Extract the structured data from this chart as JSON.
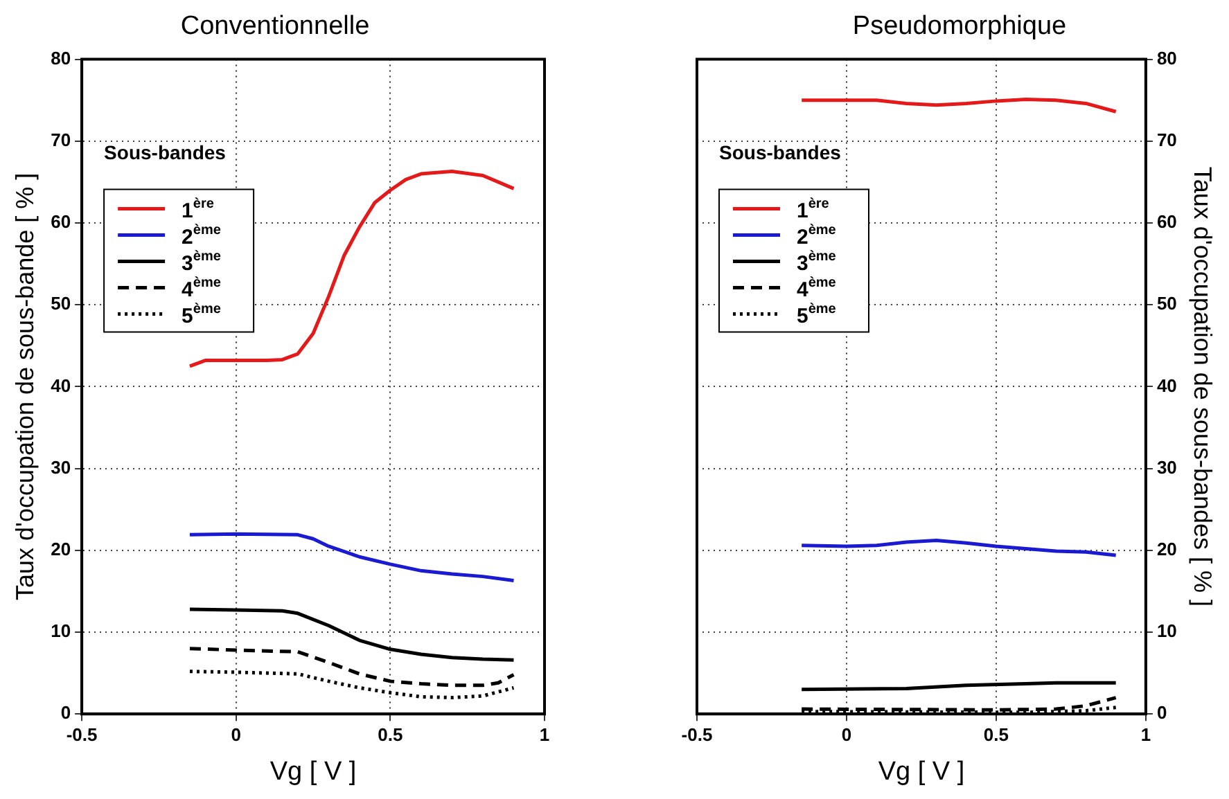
{
  "chart_data": [
    {
      "type": "line",
      "title": "Conventionnelle",
      "xlabel": "Vg [ V ]",
      "ylabel": "Taux d'occupation de sous-bande [ % ]",
      "legend_title": "Sous-bandes",
      "legend": "top left",
      "grid": true,
      "xlim": [
        -0.5,
        1
      ],
      "xticks": [
        -0.5,
        0,
        0.5,
        1
      ],
      "ylim": [
        0,
        80
      ],
      "yticks": [
        0,
        10,
        20,
        30,
        40,
        50,
        60,
        70,
        80
      ],
      "series": [
        {
          "name": "1$^{ère}$",
          "color": "#e41a1a",
          "line_style": "solid",
          "x": [
            -0.15,
            -0.1,
            0,
            0.1,
            0.15,
            0.2,
            0.25,
            0.3,
            0.35,
            0.4,
            0.45,
            0.5,
            0.55,
            0.6,
            0.7,
            0.8,
            0.9
          ],
          "values": [
            42.5,
            43.2,
            43.2,
            43.2,
            43.3,
            44,
            46.5,
            51,
            56,
            59.5,
            62.5,
            64,
            65.3,
            66,
            66.3,
            65.8,
            64.2
          ]
        },
        {
          "name": "2$^{ème}$",
          "color": "#1a1ad0",
          "line_style": "solid",
          "x": [
            -0.15,
            0,
            0.2,
            0.25,
            0.3,
            0.4,
            0.5,
            0.6,
            0.7,
            0.8,
            0.9
          ],
          "values": [
            21.9,
            22,
            21.9,
            21.4,
            20.5,
            19.2,
            18.3,
            17.5,
            17.1,
            16.8,
            16.3
          ]
        },
        {
          "name": "3$^{ème}$",
          "color": "#000000",
          "line_style": "solid",
          "x": [
            -0.15,
            0,
            0.15,
            0.2,
            0.3,
            0.4,
            0.5,
            0.6,
            0.7,
            0.8,
            0.9
          ],
          "values": [
            12.8,
            12.7,
            12.6,
            12.3,
            10.8,
            9,
            7.9,
            7.3,
            6.9,
            6.7,
            6.6
          ]
        },
        {
          "name": "4$^{ème}$",
          "color": "#000000",
          "line_style": "dashed",
          "x": [
            -0.15,
            0,
            0.2,
            0.3,
            0.4,
            0.5,
            0.6,
            0.7,
            0.8,
            0.85,
            0.9
          ],
          "values": [
            8,
            7.8,
            7.6,
            6.3,
            4.9,
            4,
            3.7,
            3.5,
            3.5,
            3.8,
            4.8
          ]
        },
        {
          "name": "5$^{ème}$",
          "color": "#000000",
          "line_style": "dotted",
          "x": [
            -0.15,
            0,
            0.2,
            0.3,
            0.4,
            0.5,
            0.6,
            0.7,
            0.8,
            0.9
          ],
          "values": [
            5.2,
            5.1,
            4.9,
            4,
            3.2,
            2.6,
            2.1,
            2,
            2.2,
            3.2
          ]
        }
      ]
    },
    {
      "type": "line",
      "title": "Pseudomorphique",
      "xlabel": "Vg [ V ]",
      "y2label": "Taux d'occupation de sous-bandes [ % ]",
      "legend_title": "Sous-bandes",
      "legend": "top left",
      "grid": true,
      "xlim": [
        -0.5,
        1
      ],
      "xticks": [
        -0.5,
        0,
        0.5,
        1
      ],
      "y2lim": [
        0,
        80
      ],
      "y2ticks": [
        0,
        10,
        20,
        30,
        40,
        50,
        60,
        70,
        80
      ],
      "series": [
        {
          "name": "1$^{ère}$",
          "color": "#e41a1a",
          "line_style": "solid",
          "axis": "y2",
          "x": [
            -0.15,
            0,
            0.1,
            0.2,
            0.3,
            0.4,
            0.5,
            0.6,
            0.7,
            0.8,
            0.9
          ],
          "values": [
            75,
            75,
            75,
            74.6,
            74.4,
            74.6,
            74.9,
            75.1,
            75,
            74.6,
            73.6
          ]
        },
        {
          "name": "2$^{ème}$",
          "color": "#1a1ad0",
          "line_style": "solid",
          "axis": "y2",
          "x": [
            -0.15,
            0,
            0.1,
            0.2,
            0.3,
            0.4,
            0.5,
            0.6,
            0.7,
            0.8,
            0.9
          ],
          "values": [
            20.6,
            20.5,
            20.6,
            21,
            21.2,
            20.9,
            20.5,
            20.2,
            19.9,
            19.8,
            19.4
          ]
        },
        {
          "name": "3$^{ème}$",
          "color": "#000000",
          "line_style": "solid",
          "axis": "y2",
          "x": [
            -0.15,
            0.2,
            0.4,
            0.6,
            0.7,
            0.9
          ],
          "values": [
            3,
            3.1,
            3.5,
            3.7,
            3.8,
            3.8
          ]
        },
        {
          "name": "4$^{ème}$",
          "color": "#000000",
          "line_style": "dashed",
          "axis": "y2",
          "x": [
            -0.15,
            0.5,
            0.7,
            0.8,
            0.9
          ],
          "values": [
            0.6,
            0.5,
            0.6,
            1,
            2
          ]
        },
        {
          "name": "5$^{ème}$",
          "color": "#000000",
          "line_style": "dotted",
          "axis": "y2",
          "x": [
            -0.15,
            0.6,
            0.8,
            0.9
          ],
          "values": [
            0.3,
            0.2,
            0.4,
            0.8
          ]
        }
      ]
    }
  ]
}
